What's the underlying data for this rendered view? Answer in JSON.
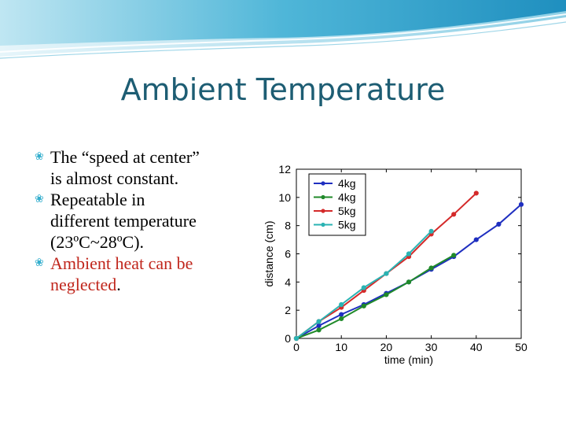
{
  "slide": {
    "title": "Ambient Temperature",
    "bullets": [
      {
        "lines": [
          "The “speed at center”",
          "is almost constant."
        ],
        "color": "#000000"
      },
      {
        "lines": [
          "Repeatable in",
          "different temperature",
          "(23ºC~28ºC)."
        ],
        "color": "#000000"
      },
      {
        "lines": [
          "Ambient heat can be",
          "neglected"
        ],
        "suffix": ".",
        "color": "#c0261c"
      }
    ]
  },
  "chart_data": {
    "type": "line",
    "xlabel": "time (min)",
    "ylabel": "distance (cm)",
    "xlim": [
      0,
      50
    ],
    "ylim": [
      0,
      12
    ],
    "xticks": [
      0,
      10,
      20,
      30,
      40,
      50
    ],
    "yticks": [
      0,
      2,
      4,
      6,
      8,
      10,
      12
    ],
    "grid": false,
    "legend": "top-left",
    "series": [
      {
        "name": "4kg",
        "color": "#1f2fc0",
        "x": [
          0,
          5,
          10,
          15,
          20,
          25,
          30,
          35,
          40,
          45,
          50
        ],
        "y": [
          0,
          0.9,
          1.7,
          2.4,
          3.2,
          4.0,
          4.9,
          5.8,
          7.0,
          8.1,
          9.5
        ]
      },
      {
        "name": "4kg",
        "color": "#208a2a",
        "x": [
          0,
          5,
          10,
          15,
          20,
          25,
          30,
          35
        ],
        "y": [
          0,
          0.6,
          1.4,
          2.3,
          3.1,
          4.0,
          5.0,
          5.9
        ]
      },
      {
        "name": "5kg",
        "color": "#d42a2a",
        "x": [
          0,
          5,
          10,
          15,
          20,
          25,
          30,
          35,
          40
        ],
        "y": [
          0,
          1.2,
          2.2,
          3.4,
          4.6,
          5.8,
          7.4,
          8.8,
          10.3
        ]
      },
      {
        "name": "5kg",
        "color": "#2ab3b3",
        "x": [
          0,
          5,
          10,
          15,
          20,
          25,
          30
        ],
        "y": [
          0,
          1.2,
          2.4,
          3.6,
          4.6,
          6.0,
          7.6
        ]
      }
    ]
  }
}
